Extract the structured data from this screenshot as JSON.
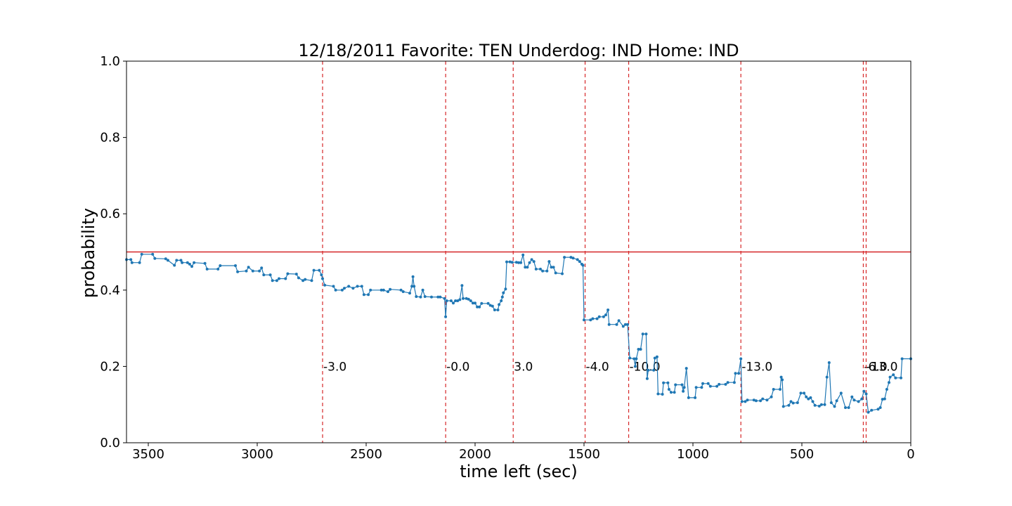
{
  "chart_data": {
    "type": "line",
    "title": "12/18/2011 Favorite: TEN Underdog: IND Home: IND",
    "xlabel": "time left (sec)",
    "ylabel": "probability",
    "xlim": [
      3600,
      0
    ],
    "ylim": [
      0.0,
      1.0
    ],
    "x_ticks": [
      3500,
      3000,
      2500,
      2000,
      1500,
      1000,
      500,
      0
    ],
    "y_ticks": [
      0.0,
      0.2,
      0.4,
      0.6,
      0.8,
      1.0
    ],
    "x_tick_labels": [
      "3500",
      "3000",
      "2500",
      "2000",
      "1500",
      "1000",
      "500",
      "0"
    ],
    "y_tick_labels": [
      "0.0",
      "0.2",
      "0.4",
      "0.6",
      "0.8",
      "1.0"
    ],
    "grid": false,
    "reference_line": {
      "y": 0.5,
      "color": "#d62728"
    },
    "series_color": "#1f77b4",
    "series": [
      {
        "values": [
          [
            3600,
            0.48
          ],
          [
            3580,
            0.48
          ],
          [
            3575,
            0.472
          ],
          [
            3540,
            0.472
          ],
          [
            3530,
            0.494
          ],
          [
            3480,
            0.494
          ],
          [
            3470,
            0.483
          ],
          [
            3420,
            0.482
          ],
          [
            3410,
            0.478
          ],
          [
            3380,
            0.465
          ],
          [
            3370,
            0.478
          ],
          [
            3350,
            0.478
          ],
          [
            3345,
            0.472
          ],
          [
            3320,
            0.472
          ],
          [
            3310,
            0.468
          ],
          [
            3300,
            0.462
          ],
          [
            3290,
            0.472
          ],
          [
            3240,
            0.47
          ],
          [
            3230,
            0.455
          ],
          [
            3180,
            0.455
          ],
          [
            3170,
            0.464
          ],
          [
            3100,
            0.464
          ],
          [
            3090,
            0.448
          ],
          [
            3050,
            0.45
          ],
          [
            3040,
            0.46
          ],
          [
            3020,
            0.45
          ],
          [
            2990,
            0.45
          ],
          [
            2980,
            0.458
          ],
          [
            2970,
            0.44
          ],
          [
            2940,
            0.44
          ],
          [
            2930,
            0.425
          ],
          [
            2910,
            0.425
          ],
          [
            2900,
            0.43
          ],
          [
            2870,
            0.43
          ],
          [
            2860,
            0.443
          ],
          [
            2820,
            0.442
          ],
          [
            2810,
            0.432
          ],
          [
            2790,
            0.425
          ],
          [
            2780,
            0.428
          ],
          [
            2750,
            0.425
          ],
          [
            2740,
            0.452
          ],
          [
            2715,
            0.452
          ],
          [
            2705,
            0.44
          ],
          [
            2700,
            0.43
          ],
          [
            2690,
            0.413
          ],
          [
            2650,
            0.41
          ],
          [
            2640,
            0.4
          ],
          [
            2610,
            0.4
          ],
          [
            2600,
            0.405
          ],
          [
            2580,
            0.41
          ],
          [
            2560,
            0.405
          ],
          [
            2540,
            0.41
          ],
          [
            2520,
            0.41
          ],
          [
            2510,
            0.388
          ],
          [
            2490,
            0.388
          ],
          [
            2480,
            0.4
          ],
          [
            2430,
            0.4
          ],
          [
            2420,
            0.4
          ],
          [
            2400,
            0.396
          ],
          [
            2390,
            0.402
          ],
          [
            2340,
            0.4
          ],
          [
            2330,
            0.396
          ],
          [
            2300,
            0.392
          ],
          [
            2290,
            0.41
          ],
          [
            2285,
            0.435
          ],
          [
            2280,
            0.41
          ],
          [
            2270,
            0.383
          ],
          [
            2250,
            0.382
          ],
          [
            2240,
            0.4
          ],
          [
            2230,
            0.383
          ],
          [
            2200,
            0.382
          ],
          [
            2170,
            0.382
          ],
          [
            2160,
            0.382
          ],
          [
            2140,
            0.378
          ],
          [
            2135,
            0.33
          ],
          [
            2130,
            0.372
          ],
          [
            2110,
            0.372
          ],
          [
            2100,
            0.366
          ],
          [
            2090,
            0.372
          ],
          [
            2080,
            0.372
          ],
          [
            2070,
            0.375
          ],
          [
            2060,
            0.412
          ],
          [
            2055,
            0.378
          ],
          [
            2040,
            0.378
          ],
          [
            2030,
            0.376
          ],
          [
            2020,
            0.372
          ],
          [
            2010,
            0.366
          ],
          [
            2000,
            0.366
          ],
          [
            1990,
            0.356
          ],
          [
            1980,
            0.356
          ],
          [
            1970,
            0.365
          ],
          [
            1940,
            0.365
          ],
          [
            1930,
            0.36
          ],
          [
            1920,
            0.358
          ],
          [
            1910,
            0.348
          ],
          [
            1895,
            0.348
          ],
          [
            1890,
            0.362
          ],
          [
            1880,
            0.372
          ],
          [
            1875,
            0.382
          ],
          [
            1870,
            0.393
          ],
          [
            1860,
            0.403
          ],
          [
            1855,
            0.474
          ],
          [
            1840,
            0.474
          ],
          [
            1830,
            0.473
          ],
          [
            1810,
            0.473
          ],
          [
            1800,
            0.472
          ],
          [
            1790,
            0.472
          ],
          [
            1780,
            0.492
          ],
          [
            1770,
            0.46
          ],
          [
            1760,
            0.46
          ],
          [
            1750,
            0.472
          ],
          [
            1740,
            0.48
          ],
          [
            1730,
            0.475
          ],
          [
            1720,
            0.455
          ],
          [
            1700,
            0.455
          ],
          [
            1690,
            0.45
          ],
          [
            1670,
            0.45
          ],
          [
            1660,
            0.475
          ],
          [
            1650,
            0.46
          ],
          [
            1640,
            0.46
          ],
          [
            1630,
            0.445
          ],
          [
            1600,
            0.443
          ],
          [
            1590,
            0.486
          ],
          [
            1560,
            0.486
          ],
          [
            1550,
            0.484
          ],
          [
            1530,
            0.48
          ],
          [
            1520,
            0.475
          ],
          [
            1510,
            0.468
          ],
          [
            1505,
            0.465
          ],
          [
            1500,
            0.322
          ],
          [
            1470,
            0.322
          ],
          [
            1460,
            0.325
          ],
          [
            1440,
            0.325
          ],
          [
            1430,
            0.33
          ],
          [
            1410,
            0.33
          ],
          [
            1400,
            0.335
          ],
          [
            1390,
            0.348
          ],
          [
            1385,
            0.31
          ],
          [
            1350,
            0.31
          ],
          [
            1340,
            0.32
          ],
          [
            1320,
            0.305
          ],
          [
            1310,
            0.31
          ],
          [
            1300,
            0.31
          ],
          [
            1290,
            0.222
          ],
          [
            1270,
            0.22
          ],
          [
            1265,
            0.2
          ],
          [
            1260,
            0.22
          ],
          [
            1250,
            0.245
          ],
          [
            1240,
            0.245
          ],
          [
            1230,
            0.285
          ],
          [
            1215,
            0.285
          ],
          [
            1210,
            0.168
          ],
          [
            1205,
            0.19
          ],
          [
            1180,
            0.19
          ],
          [
            1175,
            0.222
          ],
          [
            1165,
            0.225
          ],
          [
            1160,
            0.128
          ],
          [
            1140,
            0.127
          ],
          [
            1135,
            0.157
          ],
          [
            1115,
            0.157
          ],
          [
            1110,
            0.14
          ],
          [
            1100,
            0.132
          ],
          [
            1085,
            0.132
          ],
          [
            1080,
            0.152
          ],
          [
            1050,
            0.152
          ],
          [
            1045,
            0.135
          ],
          [
            1040,
            0.145
          ],
          [
            1030,
            0.195
          ],
          [
            1020,
            0.118
          ],
          [
            990,
            0.118
          ],
          [
            985,
            0.145
          ],
          [
            960,
            0.145
          ],
          [
            955,
            0.155
          ],
          [
            930,
            0.155
          ],
          [
            920,
            0.148
          ],
          [
            890,
            0.148
          ],
          [
            880,
            0.153
          ],
          [
            850,
            0.153
          ],
          [
            840,
            0.158
          ],
          [
            810,
            0.158
          ],
          [
            805,
            0.182
          ],
          [
            790,
            0.182
          ],
          [
            780,
            0.22
          ],
          [
            775,
            0.108
          ],
          [
            760,
            0.108
          ],
          [
            750,
            0.112
          ],
          [
            720,
            0.112
          ],
          [
            710,
            0.11
          ],
          [
            690,
            0.11
          ],
          [
            680,
            0.115
          ],
          [
            660,
            0.112
          ],
          [
            640,
            0.12
          ],
          [
            630,
            0.14
          ],
          [
            600,
            0.14
          ],
          [
            595,
            0.172
          ],
          [
            590,
            0.165
          ],
          [
            585,
            0.095
          ],
          [
            560,
            0.098
          ],
          [
            550,
            0.108
          ],
          [
            540,
            0.104
          ],
          [
            520,
            0.105
          ],
          [
            505,
            0.13
          ],
          [
            490,
            0.13
          ],
          [
            480,
            0.12
          ],
          [
            470,
            0.115
          ],
          [
            460,
            0.118
          ],
          [
            450,
            0.108
          ],
          [
            440,
            0.098
          ],
          [
            420,
            0.096
          ],
          [
            410,
            0.1
          ],
          [
            395,
            0.1
          ],
          [
            385,
            0.172
          ],
          [
            375,
            0.21
          ],
          [
            365,
            0.105
          ],
          [
            350,
            0.095
          ],
          [
            340,
            0.11
          ],
          [
            320,
            0.13
          ],
          [
            300,
            0.092
          ],
          [
            285,
            0.092
          ],
          [
            270,
            0.12
          ],
          [
            260,
            0.112
          ],
          [
            240,
            0.108
          ],
          [
            225,
            0.115
          ],
          [
            215,
            0.135
          ],
          [
            205,
            0.128
          ],
          [
            195,
            0.08
          ],
          [
            180,
            0.085
          ],
          [
            150,
            0.088
          ],
          [
            140,
            0.092
          ],
          [
            130,
            0.114
          ],
          [
            120,
            0.115
          ],
          [
            110,
            0.14
          ],
          [
            100,
            0.158
          ],
          [
            95,
            0.172
          ],
          [
            80,
            0.178
          ],
          [
            70,
            0.17
          ],
          [
            45,
            0.17
          ],
          [
            40,
            0.22
          ],
          [
            0,
            0.22
          ]
        ]
      }
    ],
    "score_markers": [
      {
        "x": 2700,
        "label": "-3.0"
      },
      {
        "x": 2135,
        "label": "-0.0"
      },
      {
        "x": 1825,
        "label": "3.0"
      },
      {
        "x": 1495,
        "label": "-4.0"
      },
      {
        "x": 1295,
        "label": "-10.0"
      },
      {
        "x": 780,
        "label": "-13.0"
      },
      {
        "x": 218,
        "label": "-6.0"
      },
      {
        "x": 205,
        "label": "-13.0"
      }
    ]
  }
}
